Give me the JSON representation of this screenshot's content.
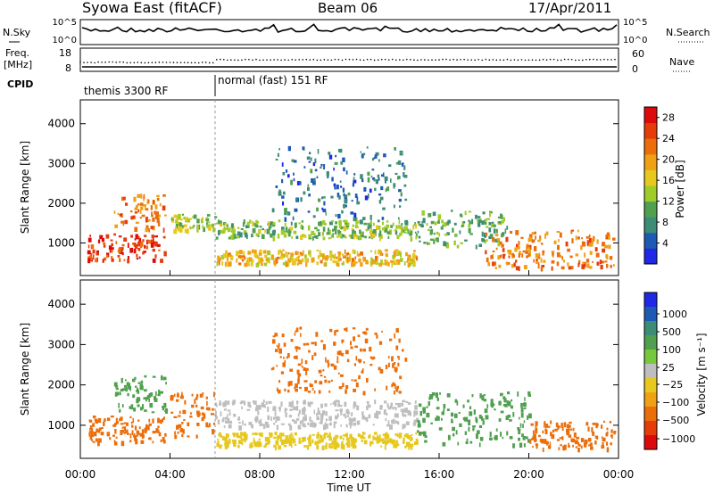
{
  "header": {
    "station": "Syowa East (fitACF)",
    "beam": "Beam 06",
    "date": "17/Apr/2011"
  },
  "nsky_panel": {
    "left_label": "N.Sky",
    "right_label": "N.Search",
    "left_ticks": [
      "10^5",
      "10^0"
    ],
    "right_ticks": [
      "10^5",
      "10^0"
    ]
  },
  "freq_panel": {
    "left_label_1": "Freq.",
    "left_label_2": "[MHz]",
    "left_ticks": [
      "18",
      "8"
    ],
    "right_label": "Nave",
    "right_ticks": [
      "60",
      "0"
    ]
  },
  "cpid": {
    "label": "CPID",
    "modes": [
      {
        "name": "themis 3300 RF",
        "start_hour": 0,
        "end_hour": 6
      },
      {
        "name": "normal (fast) 151 RF",
        "start_hour": 6,
        "end_hour": 24
      }
    ]
  },
  "colors": {
    "power_scale": [
      "#1e28e6",
      "#1e5ab4",
      "#3c8c78",
      "#50a050",
      "#a0cc28",
      "#e6c81e",
      "#f0a014",
      "#eb6e0a",
      "#e63c0a",
      "#dc0a0a"
    ],
    "velocity_scale": [
      "#1e28e6",
      "#1e5ab4",
      "#3c8c78",
      "#50a050",
      "#78c83c",
      "#bebebe",
      "#e6c81e",
      "#f0a014",
      "#eb6e0a",
      "#e63c0a",
      "#dc0a0a"
    ]
  },
  "chart_data": [
    {
      "type": "heatmap",
      "title": "Power",
      "xlabel": "Time UT",
      "ylabel": "Slant Range [km]",
      "xlim": [
        0,
        24
      ],
      "ylim": [
        180,
        4600
      ],
      "x_ticks": [
        "00:00",
        "04:00",
        "08:00",
        "12:00",
        "16:00",
        "20:00",
        "00:00"
      ],
      "y_ticks": [
        1000,
        2000,
        3000,
        4000
      ],
      "colorbar": {
        "label": "Power [dB]",
        "range": [
          0,
          30
        ],
        "ticks": [
          4,
          8,
          12,
          16,
          20,
          24,
          28
        ]
      },
      "echo_regions": [
        {
          "t0": 0.3,
          "t1": 3.8,
          "r0": 550,
          "r1": 1200,
          "level": 26
        },
        {
          "t0": 1.5,
          "t1": 3.8,
          "r0": 1300,
          "r1": 2200,
          "level": 22
        },
        {
          "t0": 4.0,
          "t1": 6.0,
          "r0": 1300,
          "r1": 1700,
          "level": 14
        },
        {
          "t0": 6.0,
          "t1": 15.0,
          "r0": 1100,
          "r1": 1550,
          "level": 12
        },
        {
          "t0": 6.0,
          "t1": 15.0,
          "r0": 450,
          "r1": 800,
          "level": 18
        },
        {
          "t0": 8.5,
          "t1": 14.5,
          "r0": 1600,
          "r1": 3400,
          "level": 6
        },
        {
          "t0": 15.0,
          "t1": 19.0,
          "r0": 900,
          "r1": 1800,
          "level": 10
        },
        {
          "t0": 18.0,
          "t1": 23.8,
          "r0": 350,
          "r1": 1300,
          "level": 22
        }
      ]
    },
    {
      "type": "heatmap",
      "title": "Velocity",
      "xlabel": "Time UT",
      "ylabel": "Slant Range [km]",
      "xlim": [
        0,
        24
      ],
      "ylim": [
        180,
        4600
      ],
      "x_ticks": [
        "00:00",
        "04:00",
        "08:00",
        "12:00",
        "16:00",
        "20:00",
        "00:00"
      ],
      "y_ticks": [
        1000,
        2000,
        3000,
        4000
      ],
      "colorbar": {
        "label": "Velocity [m s⁻¹]",
        "ticks": [
          "1000",
          "500",
          "100",
          "25",
          "−25",
          "−100",
          "−500",
          "−1000"
        ]
      },
      "echo_regions": [
        {
          "t0": 0.3,
          "t1": 3.8,
          "r0": 550,
          "r1": 1200,
          "level": -300
        },
        {
          "t0": 1.5,
          "t1": 3.8,
          "r0": 1300,
          "r1": 2200,
          "level": 150
        },
        {
          "t0": 4.0,
          "t1": 6.0,
          "r0": 700,
          "r1": 1800,
          "level": -400
        },
        {
          "t0": 6.0,
          "t1": 15.0,
          "r0": 950,
          "r1": 1600,
          "level": 0
        },
        {
          "t0": 6.0,
          "t1": 15.0,
          "r0": 450,
          "r1": 800,
          "level": -80
        },
        {
          "t0": 8.5,
          "t1": 14.5,
          "r0": 1800,
          "r1": 3400,
          "level": -200
        },
        {
          "t0": 15.0,
          "t1": 20.0,
          "r0": 500,
          "r1": 1800,
          "level": 200
        },
        {
          "t0": 20.0,
          "t1": 23.8,
          "r0": 400,
          "r1": 1100,
          "level": -300
        }
      ]
    }
  ]
}
